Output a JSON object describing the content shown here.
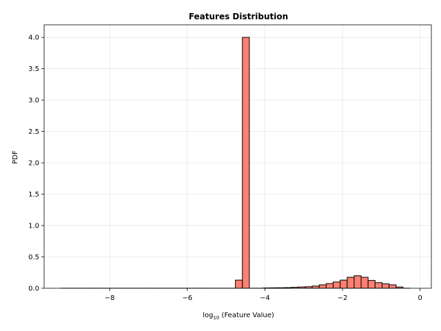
{
  "chart_data": {
    "type": "bar",
    "title": "Features Distribution",
    "xlabel": "log",
    "xlabel_subscript": "10",
    "xlabel_suffix": " (Feature Value)",
    "ylabel": "PDF",
    "xlim": [
      -9.69,
      0.29
    ],
    "ylim": [
      0,
      4.2
    ],
    "xticks": [
      -8,
      -6,
      -4,
      -2,
      0
    ],
    "xtick_labels": [
      "−8",
      "−6",
      "−4",
      "−2",
      "0"
    ],
    "yticks": [
      0,
      0.5,
      1.0,
      1.5,
      2.0,
      2.5,
      3.0,
      3.5,
      4.0
    ],
    "ytick_labels": [
      "0.0",
      "0.5",
      "1.0",
      "1.5",
      "2.0",
      "2.5",
      "3.0",
      "3.5",
      "4.0"
    ],
    "grid": true,
    "bar_color": "#fa8072",
    "edge_color": "#000000",
    "bin_edges": [
      -9.25,
      -9.07,
      -8.9,
      -8.72,
      -8.54,
      -8.36,
      -8.18,
      -8.0,
      -7.82,
      -7.64,
      -7.46,
      -7.28,
      -7.1,
      -6.92,
      -6.74,
      -6.56,
      -6.38,
      -6.2,
      -6.02,
      -5.84,
      -5.66,
      -5.48,
      -5.3,
      -5.12,
      -4.94,
      -4.76,
      -4.58,
      -4.4,
      -4.22,
      -4.04,
      -3.86,
      -3.68,
      -3.5,
      -3.32,
      -3.14,
      -2.96,
      -2.78,
      -2.6,
      -2.42,
      -2.24,
      -2.06,
      -1.88,
      -1.7,
      -1.52,
      -1.34,
      -1.16,
      -0.98,
      -0.8,
      -0.62,
      -0.44,
      -0.26
    ],
    "values": [
      0.001,
      0.001,
      0.001,
      0.001,
      0.001,
      0.001,
      0.001,
      0.001,
      0.001,
      0.001,
      0.001,
      0.001,
      0.001,
      0.001,
      0.001,
      0.001,
      0.001,
      0.001,
      0.001,
      0.001,
      0.001,
      0.001,
      0.001,
      0.001,
      0.001,
      0.13,
      4.0,
      0.001,
      0.001,
      0.005,
      0.007,
      0.008,
      0.01,
      0.015,
      0.02,
      0.025,
      0.035,
      0.055,
      0.075,
      0.1,
      0.13,
      0.175,
      0.2,
      0.175,
      0.125,
      0.09,
      0.07,
      0.055,
      0.02,
      0.001
    ]
  }
}
